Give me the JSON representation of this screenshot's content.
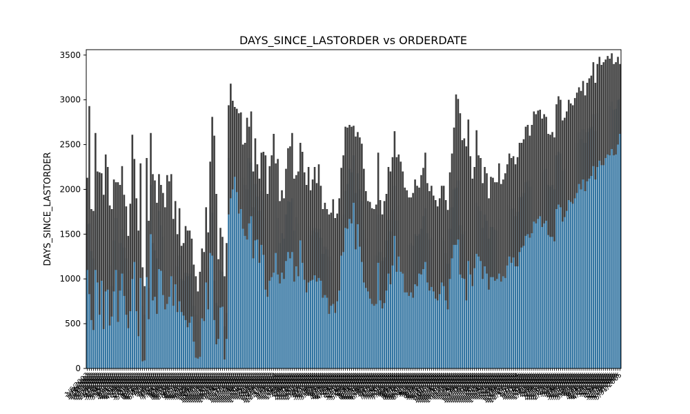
{
  "chart_data": {
    "type": "bar",
    "title": "DAYS_SINCE_LASTORDER vs ORDERDATE",
    "xlabel": "",
    "ylabel": "DAYS_SINCE_LASTORDER",
    "ylim": [
      0,
      3560
    ],
    "yticks": [
      0,
      500,
      1000,
      1500,
      2000,
      2500,
      3000,
      3500
    ],
    "grid": false,
    "legend": "none",
    "bar_color": "#3274a1",
    "errorbar_color": "#3f3f3f",
    "categories": [
      "1/6/2003",
      "1/9/2003",
      "1/10/2003",
      "1/29/2003",
      "1/31/2003",
      "2/11/2003",
      "2/17/2003",
      "2/24/2003",
      "2/28/2003",
      "3/3/2003",
      "3/10/2003",
      "3/18/2003",
      "3/24/2003",
      "3/25/2003",
      "3/26/2003",
      "4/1/2003",
      "4/4/2003",
      "4/11/2003",
      "4/16/2003",
      "4/21/2003",
      "4/28/2003",
      "4/29/2003",
      "5/7/2003",
      "5/8/2003",
      "5/20/2003",
      "5/21/2003",
      "5/28/2003",
      "6/3/2003",
      "6/6/2003",
      "6/12/2003",
      "6/16/2003",
      "6/25/2003",
      "6/27/2003",
      "7/1/2003",
      "7/2/2003",
      "7/4/2003",
      "7/7/2003",
      "7/10/2003",
      "7/16/2003",
      "7/24/2003",
      "8/1/2003",
      "8/4/2003",
      "8/8/2003",
      "8/10/2003",
      "8/13/2003",
      "8/25/2003",
      "8/28/2003",
      "9/3/2003",
      "9/5/2003",
      "9/11/2003",
      "9/12/2003",
      "9/19/2003",
      "9/21/2003",
      "9/25/2003",
      "9/28/2003",
      "10/2/2003",
      "10/4/2003",
      "10/6/2003",
      "10/8/2003",
      "10/10/2003",
      "10/11/2003",
      "10/13/2003",
      "10/17/2003",
      "10/18/2003",
      "10/20/2003",
      "10/21/2003",
      "10/22/2003",
      "10/23/2003",
      "10/28/2003",
      "11/4/2003",
      "11/5/2003",
      "11/6/2003",
      "11/7/2003",
      "11/11/2003",
      "11/12/2003",
      "11/13/2003",
      "11/14/2003",
      "11/18/2003",
      "11/19/2003",
      "11/20/2003",
      "11/21/2003",
      "11/24/2003",
      "11/25/2003",
      "11/26/2003",
      "12/1/2003",
      "12/2/2003",
      "12/3/2003",
      "12/5/2003",
      "12/9/2003",
      "12/10/2003",
      "12/11/2003",
      "12/17/2003",
      "1/2/2004",
      "1/9/2004",
      "1/12/2004",
      "1/15/2004",
      "1/16/2004",
      "1/22/2004",
      "1/26/2004",
      "1/29/2004",
      "2/2/2004",
      "2/4/2004",
      "2/9/2004",
      "2/10/2004",
      "2/12/2004",
      "2/18/2004",
      "2/20/2004",
      "2/21/2004",
      "2/22/2004",
      "2/26/2004",
      "3/2/2004",
      "3/3/2004",
      "3/11/2004",
      "3/15/2004",
      "3/19/2004",
      "3/20/2004",
      "3/30/2004",
      "4/2/2004",
      "4/3/2004",
      "4/5/2004",
      "4/9/2004",
      "4/12/2004",
      "4/13/2004",
      "4/20/2004",
      "4/29/2004",
      "5/4/2004",
      "5/5/2004",
      "5/8/2004",
      "5/11/2004",
      "5/18/2004",
      "5/26/2004",
      "5/28/2004",
      "6/3/2004",
      "6/4/2004",
      "6/8/2004",
      "6/14/2004",
      "6/15/2004",
      "6/16/2004",
      "6/17/2004",
      "6/24/2004",
      "6/28/2004",
      "6/30/2004",
      "7/2/2004",
      "7/6/2004",
      "7/7/2004",
      "7/12/2004",
      "7/16/2004",
      "7/19/2004",
      "7/20/2004",
      "7/21/2004",
      "7/23/2004",
      "7/30/2004",
      "8/2/2004",
      "8/4/2004",
      "8/6/2004",
      "8/9/2004",
      "8/17/2004",
      "8/19/2004",
      "8/20/2004",
      "8/21/2004",
      "8/27/2004",
      "8/30/2004",
      "9/1/2004",
      "9/3/2004",
      "9/7/2004",
      "9/8/2004",
      "9/9/2004",
      "9/10/2004",
      "9/15/2004",
      "9/16/2004",
      "9/27/2004",
      "9/30/2004",
      "10/6/2004",
      "10/11/2004",
      "10/13/2004",
      "10/14/2004",
      "10/15/2004",
      "10/16/2004",
      "10/21/2004",
      "10/22/2004",
      "11/1/2004",
      "11/2/2004",
      "11/3/2004",
      "11/4/2004",
      "11/5/2004",
      "11/8/2004",
      "11/9/2004",
      "11/10/2004",
      "11/12/2004",
      "11/15/2004",
      "11/16/2004",
      "11/17/2004",
      "11/18/2004",
      "11/19/2004",
      "11/20/2004",
      "11/21/2004",
      "11/22/2004",
      "11/23/2004",
      "11/24/2004",
      "11/25/2004",
      "11/29/2004",
      "12/1/2004",
      "12/2/2004",
      "12/3/2004",
      "12/4/2004",
      "12/7/2004",
      "12/9/2004",
      "12/10/2004",
      "12/15/2004",
      "12/16/2004",
      "12/17/2004",
      "1/5/2005",
      "1/6/2005",
      "1/7/2005",
      "1/10/2005",
      "1/12/2005",
      "1/19/2005",
      "1/20/2005",
      "1/23/2005",
      "1/26/2005",
      "1/31/2005",
      "2/2/2005",
      "2/3/2005",
      "2/8/2005",
      "2/9/2005",
      "2/10/2005",
      "2/15/2005",
      "2/16/2005",
      "2/17/2005",
      "2/22/2005",
      "2/23/2005",
      "3/1/2005",
      "3/2/2005",
      "3/3/2005",
      "3/4/2005",
      "3/9/2005",
      "3/10/2005",
      "3/15/2005",
      "3/17/2005",
      "3/23/2005",
      "3/28/2005",
      "3/30/2005",
      "4/1/2005",
      "4/3/2005",
      "4/7/2005",
      "4/8/2005",
      "4/14/2005",
      "4/15/2005",
      "4/22/2005",
      "4/23/2005",
      "5/1/2005",
      "5/3/2005",
      "5/5/2005",
      "5/6/2005",
      "5/9/2005",
      "5/10/2005",
      "5/13/2005",
      "5/17/2005",
      "5/29/2005",
      "5/30/2005",
      "5/31/2005"
    ],
    "values": [
      1610,
      1620,
      1310,
      1230,
      1720,
      1800,
      1390,
      1560,
      1280,
      1180,
      1300,
      1150,
      920,
      1430,
      1680,
      1100,
      1400,
      1550,
      1350,
      1230,
      880,
      1090,
      1600,
      1750,
      1200,
      950,
      1700,
      700,
      600,
      1650,
      900,
      2050,
      1400,
      1320,
      1230,
      1760,
      1600,
      1470,
      1100,
      1300,
      1450,
      1680,
      1200,
      1480,
      1140,
      1260,
      1000,
      980,
      1070,
      1030,
      1060,
      1150,
      700,
      600,
      520,
      660,
      960,
      950,
      1350,
      1120,
      1800,
      1740,
      980,
      730,
      700,
      1100,
      1080,
      470,
      620,
      2350,
      2220,
      2560,
      2700,
      2600,
      2370,
      2400,
      2130,
      2050,
      2000,
      2350,
      2300,
      1800,
      2060,
      1920,
      1760,
      1980,
      1880,
      1680,
      1520,
      1600,
      1680,
      1650,
      1870,
      1680,
      1400,
      1510,
      1450,
      1720,
      1870,
      1860,
      1900,
      1540,
      1690,
      1620,
      1980,
      1800,
      1500,
      1400,
      1590,
      1490,
      1540,
      1570,
      1520,
      1560,
      1460,
      1280,
      1360,
      1330,
      1250,
      1200,
      1260,
      1150,
      1230,
      1330,
      1690,
      1720,
      1980,
      2060,
      2230,
      2190,
      2380,
      1960,
      2180,
      2000,
      1870,
      1550,
      1450,
      1440,
      1310,
      1260,
      1220,
      1260,
      1720,
      1300,
      1200,
      1240,
      1430,
      1660,
      1530,
      1770,
      2040,
      1650,
      1820,
      1690,
      1690,
      1410,
      1410,
      1380,
      1400,
      1370,
      1500,
      1480,
      1500,
      1560,
      1700,
      1790,
      1510,
      1440,
      1460,
      1370,
      1310,
      1270,
      1350,
      1460,
      1430,
      1290,
      1170,
      1560,
      1800,
      2000,
      2020,
      2100,
      1600,
      1500,
      1530,
      1230,
      1800,
      1610,
      1470,
      1720,
      1850,
      1810,
      1760,
      1570,
      1720,
      1650,
      1450,
      1580,
      1580,
      1550,
      1540,
      1670,
      1510,
      1580,
      1590,
      1720,
      1820,
      1780,
      1790,
      1700,
      1750,
      1910,
      1920,
      1960,
      2080,
      2100,
      2030,
      2110,
      2260,
      2220,
      2280,
      2310,
      2190,
      2220,
      2230,
      2050,
      2030,
      2050,
      2000,
      2380,
      2420,
      2400,
      2210,
      2230,
      2320,
      2430,
      2400,
      2380,
      2460,
      2520,
      2640,
      2560,
      2670,
      2520,
      2640,
      2680,
      2700,
      2840,
      2650,
      2850,
      2910,
      2830,
      2840,
      2900,
      2950,
      2930,
      2980,
      2890,
      2900,
      3000,
      3010
    ],
    "error_low": [
      1100,
      830,
      540,
      430,
      1100,
      960,
      600,
      980,
      440,
      860,
      880,
      480,
      580,
      860,
      1100,
      520,
      870,
      1060,
      810,
      600,
      450,
      640,
      1000,
      1190,
      640,
      360,
      1010,
      80,
      90,
      1020,
      550,
      1500,
      760,
      800,
      610,
      1110,
      1090,
      820,
      660,
      720,
      800,
      1030,
      700,
      940,
      630,
      750,
      630,
      590,
      540,
      460,
      510,
      580,
      300,
      120,
      110,
      130,
      560,
      530,
      960,
      660,
      1290,
      1260,
      540,
      270,
      330,
      680,
      690,
      100,
      330,
      1720,
      1900,
      2000,
      2140,
      1970,
      1730,
      1780,
      1560,
      1480,
      1440,
      1620,
      1700,
      1230,
      1430,
      1440,
      1180,
      1380,
      1270,
      880,
      800,
      980,
      1020,
      1070,
      1290,
      1050,
      950,
      1070,
      1000,
      1200,
      1300,
      1230,
      1300,
      970,
      1140,
      1030,
      1430,
      1180,
      990,
      850,
      960,
      980,
      990,
      1040,
      970,
      1010,
      980,
      790,
      820,
      790,
      610,
      700,
      720,
      620,
      750,
      870,
      1260,
      1300,
      1570,
      1560,
      1670,
      1620,
      1850,
      1330,
      1610,
      1360,
      1190,
      960,
      900,
      860,
      780,
      720,
      700,
      720,
      1180,
      760,
      670,
      730,
      870,
      1060,
      940,
      1150,
      1480,
      1080,
      1250,
      1080,
      1060,
      850,
      850,
      810,
      850,
      790,
      940,
      920,
      1060,
      1050,
      1110,
      1190,
      960,
      870,
      910,
      860,
      780,
      760,
      830,
      960,
      920,
      760,
      660,
      1000,
      1230,
      1380,
      1380,
      1440,
      1050,
      1010,
      1000,
      760,
      1200,
      1050,
      920,
      1120,
      1280,
      1250,
      1200,
      1000,
      1140,
      1060,
      880,
      1020,
      1020,
      980,
      1000,
      1060,
      970,
      1030,
      1010,
      1150,
      1250,
      1180,
      1240,
      1140,
      1140,
      1300,
      1350,
      1370,
      1480,
      1500,
      1460,
      1510,
      1640,
      1620,
      1670,
      1700,
      1580,
      1620,
      1650,
      1490,
      1470,
      1470,
      1420,
      1780,
      1830,
      1800,
      1640,
      1690,
      1760,
      1880,
      1860,
      1840,
      1900,
      1960,
      2060,
      2000,
      2110,
      1980,
      2090,
      2120,
      2150,
      2260,
      2110,
      2250,
      2320,
      2270,
      2270,
      2350,
      2390,
      2380,
      2450,
      2380,
      2390,
      2500,
      2620
    ],
    "error_high": [
      2130,
      2930,
      1780,
      1760,
      2630,
      2200,
      2190,
      2180,
      1940,
      2390,
      2250,
      1820,
      1780,
      2110,
      2080,
      2080,
      2050,
      2260,
      1940,
      1810,
      1480,
      1840,
      2610,
      2340,
      1900,
      1540,
      2290,
      1130,
      920,
      2350,
      1650,
      2630,
      2170,
      2100,
      1850,
      2170,
      2050,
      1960,
      1800,
      2160,
      2090,
      2170,
      1670,
      1870,
      1500,
      1790,
      1370,
      1400,
      1590,
      1540,
      1540,
      1450,
      1160,
      1030,
      860,
      1080,
      1340,
      1300,
      1800,
      1520,
      2310,
      2810,
      2600,
      1950,
      1220,
      1570,
      1470,
      1030,
      1400,
      2940,
      3180,
      2990,
      2920,
      2900,
      2850,
      2860,
      2500,
      2520,
      2800,
      2700,
      2870,
      2200,
      2570,
      2280,
      2120,
      2410,
      2420,
      2380,
      1950,
      2260,
      2380,
      2620,
      2290,
      2340,
      1870,
      1990,
      1900,
      2230,
      2460,
      2480,
      2630,
      2120,
      2160,
      2200,
      2520,
      2420,
      2190,
      2050,
      2250,
      1990,
      2110,
      2250,
      2070,
      2280,
      2040,
      1780,
      1850,
      1780,
      1720,
      1740,
      1890,
      1680,
      1730,
      1900,
      2240,
      2380,
      2700,
      2690,
      2720,
      2700,
      2710,
      2590,
      2640,
      2580,
      2510,
      2230,
      1980,
      1870,
      1860,
      1790,
      1780,
      1830,
      2410,
      1880,
      1720,
      1870,
      1950,
      2250,
      2200,
      2360,
      2650,
      2360,
      2390,
      2310,
      2200,
      2020,
      1990,
      1910,
      1910,
      1960,
      2110,
      2040,
      2020,
      2160,
      2240,
      2410,
      2070,
      1980,
      2040,
      1930,
      1880,
      1810,
      1900,
      2040,
      2040,
      1880,
      1770,
      2190,
      2400,
      2690,
      3060,
      3010,
      2850,
      2550,
      2570,
      2480,
      2780,
      2370,
      2120,
      2250,
      2660,
      2380,
      2350,
      2070,
      2250,
      2180,
      1900,
      2140,
      2130,
      2080,
      2080,
      2290,
      2060,
      2110,
      2180,
      2280,
      2400,
      2350,
      2370,
      2280,
      2360,
      2520,
      2520,
      2560,
      2700,
      2720,
      2600,
      2720,
      2870,
      2840,
      2880,
      2890,
      2790,
      2840,
      2810,
      2620,
      2610,
      2640,
      2580,
      2950,
      3040,
      3000,
      2770,
      2800,
      2870,
      3000,
      2960,
      2940,
      3020,
      3080,
      3140,
      3100,
      3210,
      3050,
      3190,
      3240,
      3270,
      3420,
      3190,
      3400,
      3480,
      3390,
      3420,
      3450,
      3490,
      3460,
      3520,
      3400,
      3420,
      3480,
      3400
    ]
  }
}
